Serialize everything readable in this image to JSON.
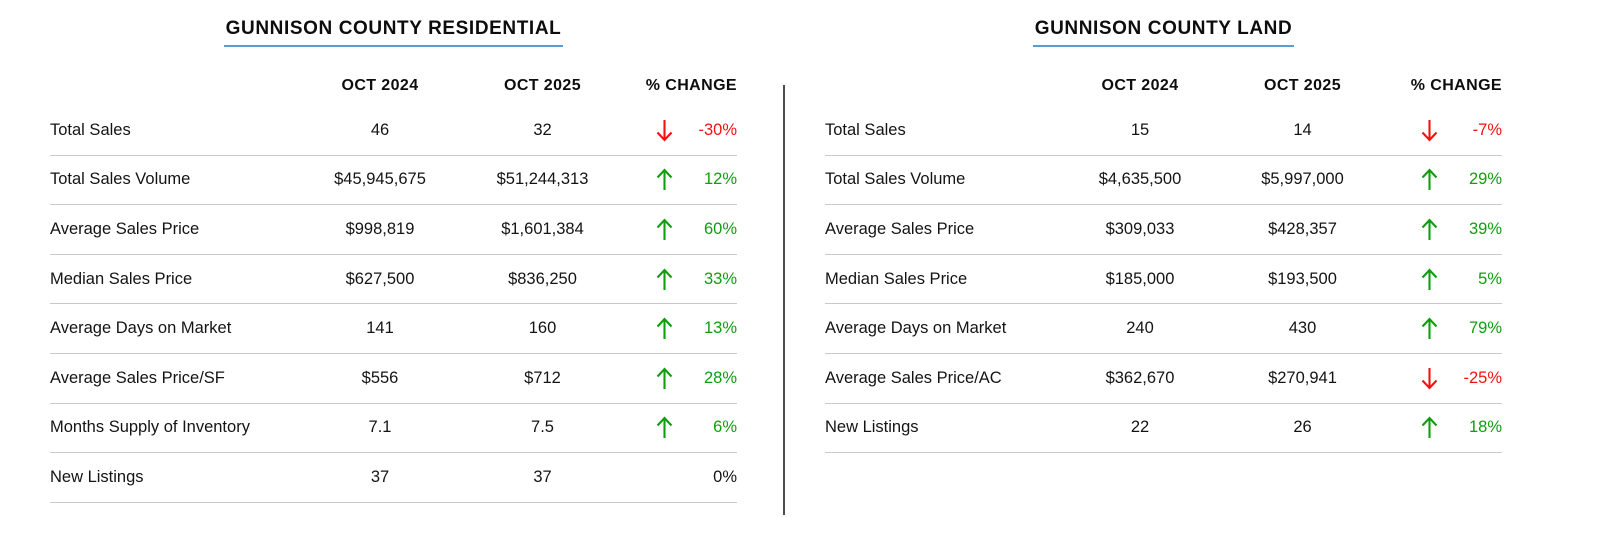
{
  "colors": {
    "positive_green": "#109e10",
    "negative_red": "#f21212",
    "title_underline_blue": "#5b9bd5",
    "row_separator_gray": "#c9c9c9",
    "divider_gray": "#4d4d4d",
    "text_black": "#141414"
  },
  "chart_data": [
    {
      "type": "table",
      "title": "GUNNISON COUNTY RESIDENTIAL",
      "columns": [
        "",
        "OCT 2024",
        "OCT 2025",
        "% CHANGE"
      ],
      "rows": [
        {
          "label": "Total Sales",
          "oct_2024": "46",
          "oct_2025": "32",
          "change": "-30%",
          "direction": "down"
        },
        {
          "label": "Total Sales Volume",
          "oct_2024": "$45,945,675",
          "oct_2025": "$51,244,313",
          "change": "12%",
          "direction": "up"
        },
        {
          "label": "Average Sales Price",
          "oct_2024": "$998,819",
          "oct_2025": "$1,601,384",
          "change": "60%",
          "direction": "up"
        },
        {
          "label": "Median Sales Price",
          "oct_2024": "$627,500",
          "oct_2025": "$836,250",
          "change": "33%",
          "direction": "up"
        },
        {
          "label": "Average Days on Market",
          "oct_2024": "141",
          "oct_2025": "160",
          "change": "13%",
          "direction": "up"
        },
        {
          "label": "Average Sales Price/SF",
          "oct_2024": "$556",
          "oct_2025": "$712",
          "change": "28%",
          "direction": "up"
        },
        {
          "label": "Months Supply of Inventory",
          "oct_2024": "7.1",
          "oct_2025": "7.5",
          "change": "6%",
          "direction": "up"
        },
        {
          "label": "New Listings",
          "oct_2024": "37",
          "oct_2025": "37",
          "change": "0%",
          "direction": "none"
        }
      ]
    },
    {
      "type": "table",
      "title": "GUNNISON COUNTY LAND",
      "columns": [
        "",
        "OCT 2024",
        "OCT 2025",
        "% CHANGE"
      ],
      "rows": [
        {
          "label": "Total Sales",
          "oct_2024": "15",
          "oct_2025": "14",
          "change": "-7%",
          "direction": "down"
        },
        {
          "label": "Total Sales Volume",
          "oct_2024": "$4,635,500",
          "oct_2025": "$5,997,000",
          "change": "29%",
          "direction": "up"
        },
        {
          "label": "Average Sales Price",
          "oct_2024": "$309,033",
          "oct_2025": "$428,357",
          "change": "39%",
          "direction": "up"
        },
        {
          "label": "Median Sales Price",
          "oct_2024": "$185,000",
          "oct_2025": "$193,500",
          "change": "5%",
          "direction": "up"
        },
        {
          "label": "Average Days on Market",
          "oct_2024": "240",
          "oct_2025": "430",
          "change": "79%",
          "direction": "up"
        },
        {
          "label": "Average Sales Price/AC",
          "oct_2024": "$362,670",
          "oct_2025": "$270,941",
          "change": "-25%",
          "direction": "down"
        },
        {
          "label": "New Listings",
          "oct_2024": "22",
          "oct_2025": "26",
          "change": "18%",
          "direction": "up"
        }
      ]
    }
  ]
}
